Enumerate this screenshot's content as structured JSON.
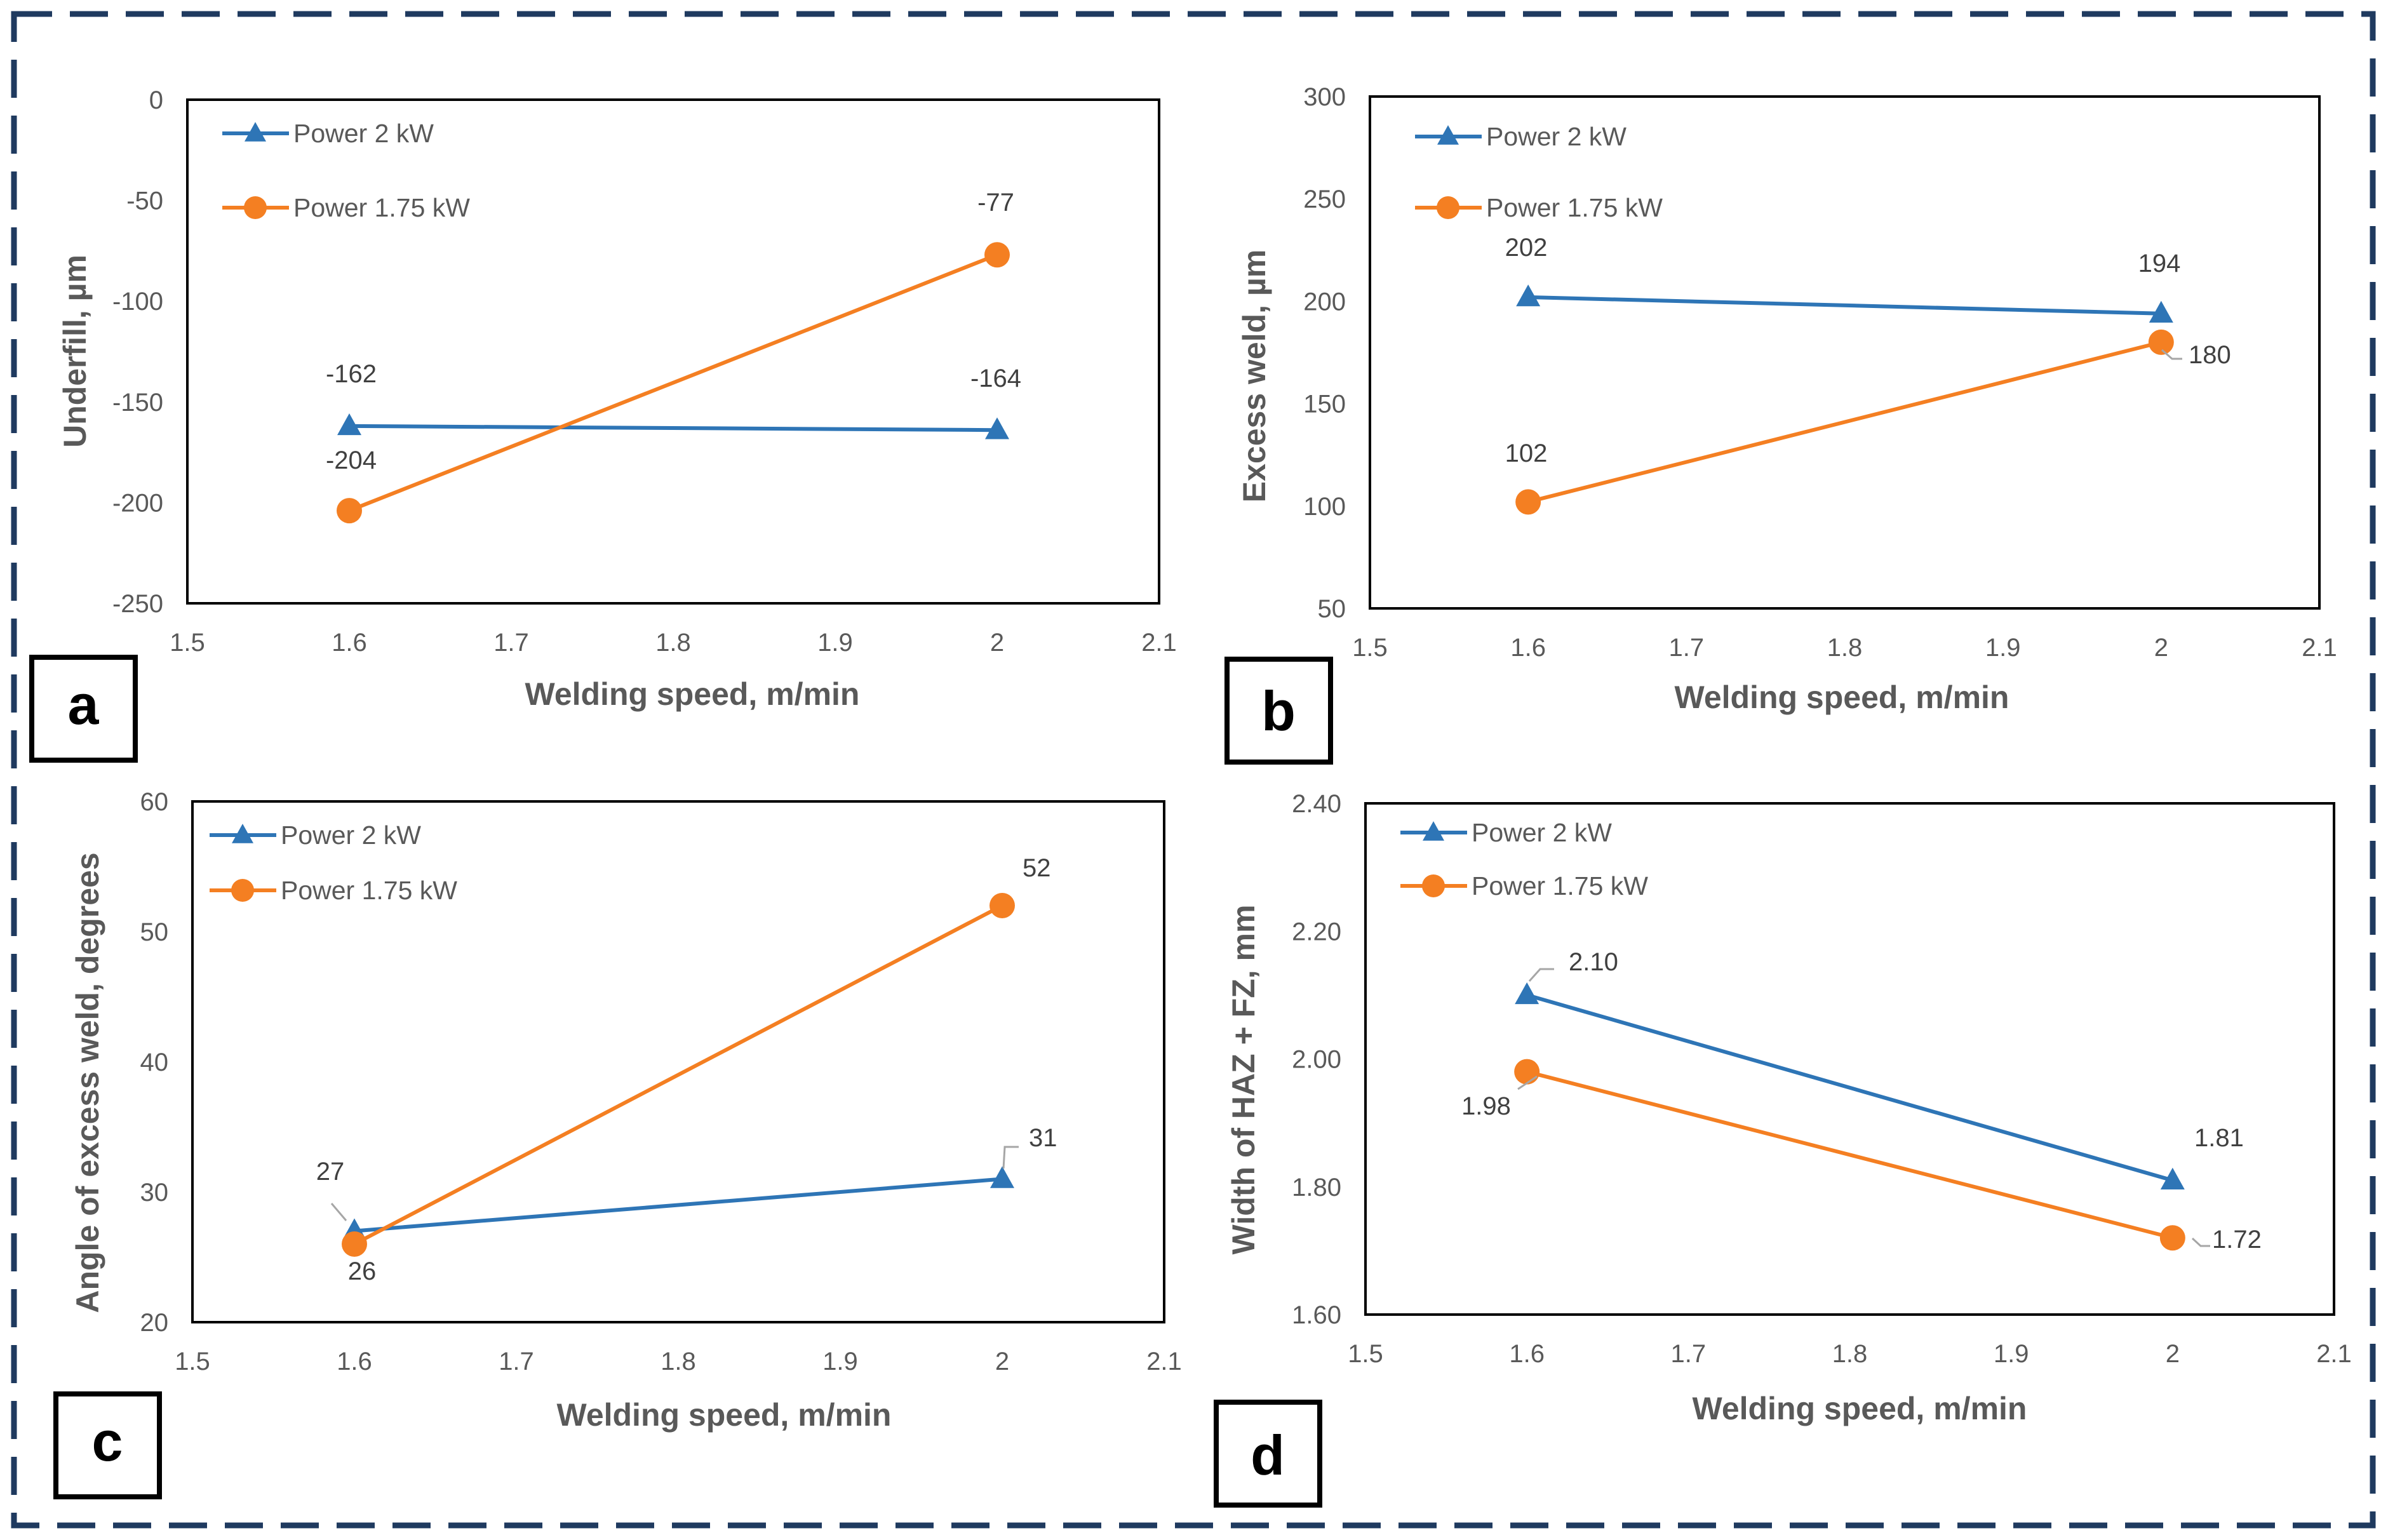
{
  "colors": {
    "series_power_2kw": "#2E75B6",
    "series_power_175kw": "#F47F22",
    "border": "#1F3A5F"
  },
  "chart_data": [
    {
      "type": "line",
      "panel_label": "a",
      "xlabel": "Welding speed, m/min",
      "ylabel": "Underfill, µm",
      "xlim": [
        1.5,
        2.1
      ],
      "ylim": [
        -250,
        0
      ],
      "x_ticks": [
        "1.5",
        "1.6",
        "1.7",
        "1.8",
        "1.9",
        "2",
        "2.1"
      ],
      "y_ticks": [
        "0",
        "-50",
        "-100",
        "-150",
        "-200",
        "-250"
      ],
      "legend_position": "top-left",
      "series": [
        {
          "name": "Power 2 kW",
          "marker": "triangle",
          "x": [
            1.6,
            2.0
          ],
          "y": [
            -162,
            -164
          ],
          "labels": [
            "-162",
            "-164"
          ]
        },
        {
          "name": "Power 1.75 kW",
          "marker": "circle",
          "x": [
            1.6,
            2.0
          ],
          "y": [
            -204,
            -77
          ],
          "labels": [
            "-204",
            "-77"
          ]
        }
      ]
    },
    {
      "type": "line",
      "panel_label": "b",
      "xlabel": "Welding speed, m/min",
      "ylabel": "Excess weld, µm",
      "xlim": [
        1.5,
        2.1
      ],
      "ylim": [
        50,
        300
      ],
      "x_ticks": [
        "1.5",
        "1.6",
        "1.7",
        "1.8",
        "1.9",
        "2",
        "2.1"
      ],
      "y_ticks": [
        "300",
        "250",
        "200",
        "150",
        "100",
        "50"
      ],
      "legend_position": "top-left",
      "series": [
        {
          "name": "Power 2 kW",
          "marker": "triangle",
          "x": [
            1.6,
            2.0
          ],
          "y": [
            202,
            194
          ],
          "labels": [
            "202",
            "194"
          ]
        },
        {
          "name": "Power 1.75 kW",
          "marker": "circle",
          "x": [
            1.6,
            2.0
          ],
          "y": [
            102,
            180
          ],
          "labels": [
            "102",
            "180"
          ]
        }
      ]
    },
    {
      "type": "line",
      "panel_label": "c",
      "xlabel": "Welding speed, m/min",
      "ylabel": "Angle of excess weld, degrees",
      "xlim": [
        1.5,
        2.1
      ],
      "ylim": [
        20,
        60
      ],
      "x_ticks": [
        "1.5",
        "1.6",
        "1.7",
        "1.8",
        "1.9",
        "2",
        "2.1"
      ],
      "y_ticks": [
        "60",
        "50",
        "40",
        "30",
        "20"
      ],
      "legend_position": "top-left",
      "series": [
        {
          "name": "Power 2 kW",
          "marker": "triangle",
          "x": [
            1.6,
            2.0
          ],
          "y": [
            27,
            31
          ],
          "labels": [
            "27",
            "31"
          ]
        },
        {
          "name": "Power 1.75 kW",
          "marker": "circle",
          "x": [
            1.6,
            2.0
          ],
          "y": [
            26,
            52
          ],
          "labels": [
            "26",
            "52"
          ]
        }
      ]
    },
    {
      "type": "line",
      "panel_label": "d",
      "xlabel": "Welding speed, m/min",
      "ylabel": "Width of HAZ + FZ, mm",
      "xlim": [
        1.5,
        2.1
      ],
      "ylim": [
        1.6,
        2.4
      ],
      "x_ticks": [
        "1.5",
        "1.6",
        "1.7",
        "1.8",
        "1.9",
        "2",
        "2.1"
      ],
      "y_ticks": [
        "2.40",
        "2.20",
        "2.00",
        "1.80",
        "1.60"
      ],
      "legend_position": "top-left",
      "series": [
        {
          "name": "Power 2 kW",
          "marker": "triangle",
          "x": [
            1.6,
            2.0
          ],
          "y": [
            2.1,
            1.81
          ],
          "labels": [
            "2.10",
            "1.81"
          ]
        },
        {
          "name": "Power  1.75 kW",
          "marker": "circle",
          "x": [
            1.6,
            2.0
          ],
          "y": [
            1.98,
            1.72
          ],
          "labels": [
            "1.98",
            "1.72"
          ]
        }
      ]
    }
  ]
}
